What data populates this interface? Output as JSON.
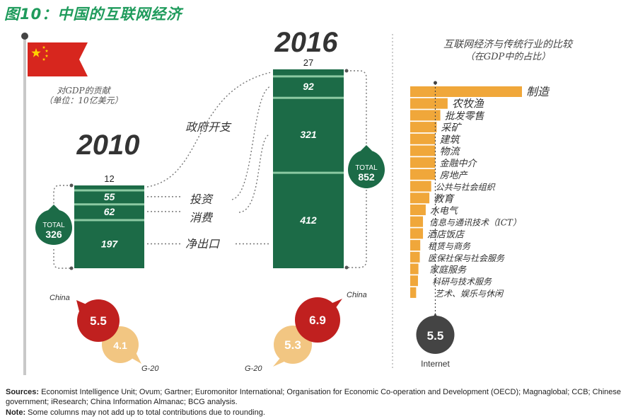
{
  "title": "图10：中国的互联网经济",
  "colors": {
    "green": "#1c6b47",
    "light_green": "#8cc9a2",
    "red": "#c0201f",
    "peach": "#f2c682",
    "orange": "#f0a73a",
    "gray": "#444444",
    "title_green": "#1f9b5c"
  },
  "flag_caption": [
    "对GDP的贡献",
    "（单位：10亿美元）"
  ],
  "chart_data": [
    {
      "type": "bar",
      "name": "GDP contribution stacked columns",
      "title": "对GDP的贡献",
      "ylabel": "单位：10亿美元",
      "categories": [
        "2010",
        "2016"
      ],
      "series": [
        {
          "name": "净出口",
          "values": [
            197,
            412
          ]
        },
        {
          "name": "消费",
          "values": [
            62,
            321
          ]
        },
        {
          "name": "投资",
          "values": [
            55,
            92
          ]
        },
        {
          "name": "政府开支",
          "values": [
            12,
            27
          ]
        }
      ],
      "totals": [
        {
          "label": "TOTAL",
          "value": "326"
        },
        {
          "label": "TOTAL",
          "value": "852"
        }
      ]
    },
    {
      "type": "bar",
      "name": "Internet share of GDP",
      "categories": [
        "China",
        "G-20"
      ],
      "series": [
        {
          "name": "2010",
          "values": [
            5.5,
            4.1
          ]
        },
        {
          "name": "2016",
          "values": [
            6.9,
            5.3
          ]
        }
      ]
    },
    {
      "type": "bar",
      "orientation": "horizontal",
      "title": "互联网经济与传统行业的比较",
      "subtitle": "（在GDP中的占比）",
      "categories": [
        "制造",
        "农牧渔",
        "批发零售",
        "采矿",
        "建筑",
        "物流",
        "金融中介",
        "房地产",
        "公共与社会组织",
        "教育",
        "水电气",
        "信息与通讯技术（ICT）",
        "酒店饭店",
        "租赁与商务",
        "医保社保与社会服务",
        "家庭服务",
        "科研与技术服务",
        "艺术、娱乐与休闲"
      ],
      "values": [
        24.5,
        8.2,
        6.6,
        5.8,
        5.5,
        5.5,
        5.5,
        5.5,
        4.6,
        4.2,
        3.4,
        2.8,
        2.8,
        2.2,
        2.1,
        1.8,
        1.7,
        1.3
      ],
      "reference": {
        "label": "Internet",
        "value": "5.5"
      }
    }
  ],
  "footer": {
    "sources_label": "Sources:",
    "sources_text": " Economist Intelligence Unit; Ovum; Gartner; Euromonitor International; Organisation for Economic Co-operation and Development (OECD); Magnaglobal; CCB; Chinese government; iResearch; China Information Almanac; BCG analysis.",
    "note_label": "Note:",
    "note_text": " Some columns may not add up to total contributions due to rounding."
  }
}
